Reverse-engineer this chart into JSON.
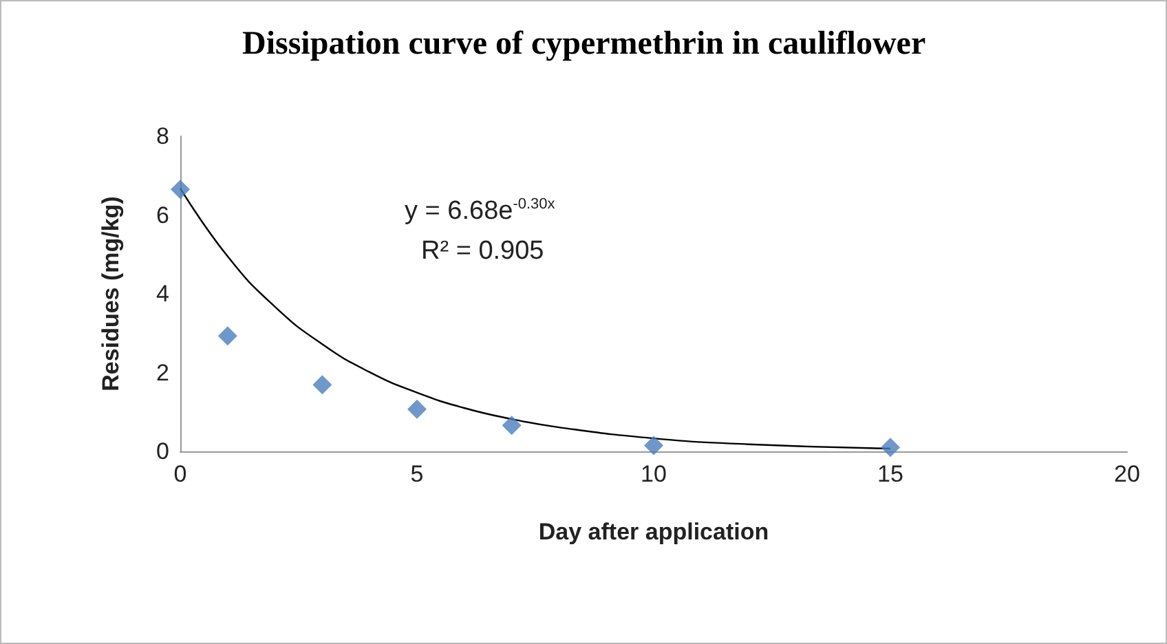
{
  "chart_data": {
    "type": "scatter",
    "title": "Dissipation curve of cypermethrin in cauliflower",
    "xlabel": "Day after application",
    "ylabel": "Residues (mg/kg)",
    "xlim": [
      0,
      20
    ],
    "xticks": [
      0,
      5,
      10,
      15,
      20
    ],
    "ylim": [
      0,
      8
    ],
    "yticks": [
      0,
      2,
      4,
      6,
      8
    ],
    "grid": false,
    "series": [
      {
        "color": "#4a7ebb",
        "marker": "diamond",
        "x": [
          0,
          1,
          3,
          5,
          7,
          10,
          15
        ],
        "values": [
          6.65,
          2.93,
          1.69,
          1.07,
          0.66,
          0.15,
          0.1
        ]
      },
      {
        "type": "line",
        "color": "#000000",
        "marker": "none",
        "x": [
          0,
          1,
          2,
          3,
          4,
          5,
          6,
          7,
          8,
          10,
          12,
          15
        ],
        "values": [
          6.68,
          4.95,
          3.67,
          2.72,
          2.01,
          1.49,
          1.1,
          0.82,
          0.61,
          0.33,
          0.18,
          0.07
        ]
      }
    ],
    "annotations": [
      "y = 6.68e$^{-0.30x}$",
      "R² = 0.905"
    ]
  }
}
